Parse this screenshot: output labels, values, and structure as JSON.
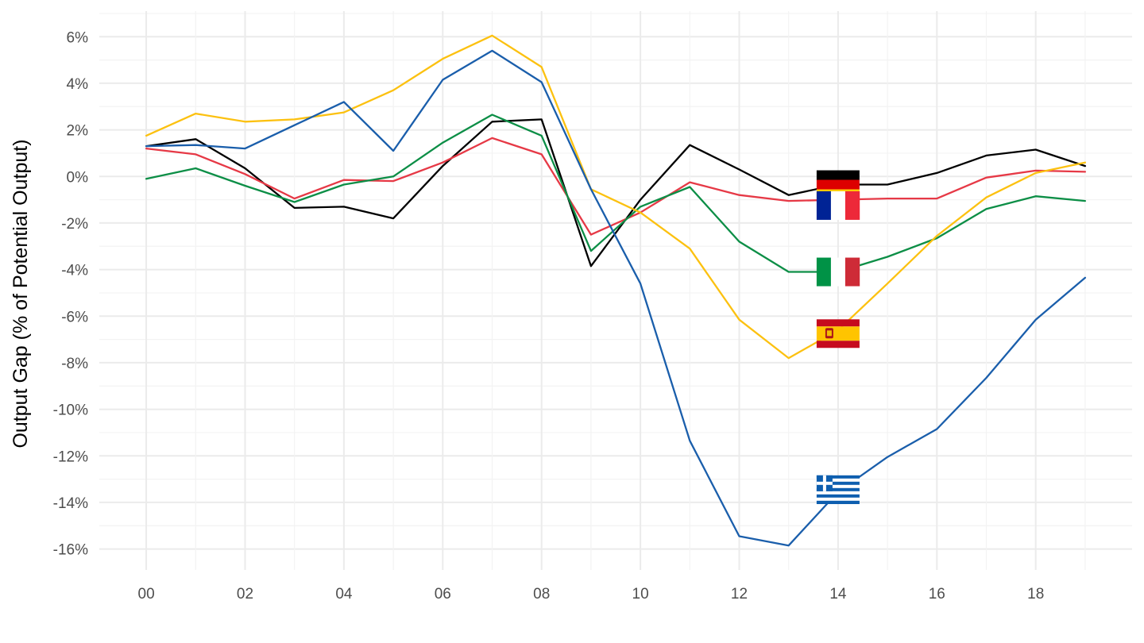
{
  "chart_data": {
    "type": "line",
    "title": "",
    "xlabel": "",
    "ylabel": "Output Gap (% of Potential Output)",
    "x": [
      0,
      1,
      2,
      3,
      4,
      5,
      6,
      7,
      8,
      9,
      10,
      11,
      12,
      13,
      14,
      15,
      16,
      17,
      18,
      19
    ],
    "x_tick_values": [
      0,
      2,
      4,
      6,
      8,
      10,
      12,
      14,
      16,
      18
    ],
    "x_tick_labels": [
      "00",
      "02",
      "04",
      "06",
      "08",
      "10",
      "12",
      "14",
      "16",
      "18"
    ],
    "xlim": [
      -0.95,
      19.95
    ],
    "y_tick_values": [
      6,
      4,
      2,
      0,
      -2,
      -4,
      -6,
      -8,
      -10,
      -12,
      -14,
      -16
    ],
    "y_tick_labels": [
      "6%",
      "4%",
      "2%",
      "0%",
      "-2%",
      "-4%",
      "-6%",
      "-8%",
      "-10%",
      "-12%",
      "-14%",
      "-16%"
    ],
    "ylim": [
      -16.9,
      7.1
    ],
    "grid": true,
    "legend": "flags placed on each line at x = 14",
    "series": [
      {
        "country": "germany",
        "color": "#000000",
        "values": [
          1.3,
          1.6,
          0.35,
          -1.35,
          -1.3,
          -1.8,
          0.45,
          2.35,
          2.45,
          -3.85,
          -1.0,
          1.35,
          0.3,
          -0.8,
          -0.35,
          -0.35,
          0.15,
          0.9,
          1.15,
          0.45
        ]
      },
      {
        "country": "france",
        "color": "#e63946",
        "values": [
          1.2,
          0.95,
          0.1,
          -0.95,
          -0.15,
          -0.2,
          0.6,
          1.65,
          0.95,
          -2.5,
          -1.55,
          -0.25,
          -0.8,
          -1.05,
          -1.0,
          -0.95,
          -0.95,
          -0.05,
          0.25,
          0.2
        ]
      },
      {
        "country": "italy",
        "color": "#0c8e46",
        "values": [
          -0.1,
          0.35,
          -0.4,
          -1.1,
          -0.35,
          0.0,
          1.45,
          2.65,
          1.75,
          -3.2,
          -1.3,
          -0.45,
          -2.8,
          -4.1,
          -4.1,
          -3.45,
          -2.65,
          -1.4,
          -0.85,
          -1.05
        ]
      },
      {
        "country": "spain",
        "color": "#fcc110",
        "values": [
          1.75,
          2.7,
          2.35,
          2.45,
          2.75,
          3.7,
          5.05,
          6.05,
          4.7,
          -0.55,
          -1.55,
          -3.1,
          -6.15,
          -7.8,
          -6.6,
          -4.6,
          -2.55,
          -0.9,
          0.15,
          0.6
        ]
      },
      {
        "country": "greece",
        "color": "#1a5eab",
        "values": [
          1.3,
          1.35,
          1.2,
          2.2,
          3.2,
          1.1,
          4.15,
          5.4,
          4.05,
          -0.55,
          -4.6,
          -11.35,
          -15.45,
          -15.85,
          -13.55,
          -12.05,
          -10.85,
          -8.65,
          -6.15,
          -4.35
        ]
      }
    ],
    "flags": [
      {
        "country": "germany",
        "x": 14,
        "y": -0.35,
        "icon": "flag-germany-icon",
        "colors": [
          "#000000",
          "#dd0000",
          "#ffce00"
        ]
      },
      {
        "country": "france",
        "x": 14,
        "y": -1.25,
        "icon": "flag-france-icon",
        "colors": [
          "#002395",
          "#ffffff",
          "#ed2939"
        ]
      },
      {
        "country": "italy",
        "x": 14,
        "y": -4.1,
        "icon": "flag-italy-icon",
        "colors": [
          "#009246",
          "#ffffff",
          "#ce2b37"
        ]
      },
      {
        "country": "spain",
        "x": 14,
        "y": -6.75,
        "icon": "flag-spain-icon",
        "colors": [
          "#c60b1e",
          "#ffc400",
          "#c60b1e"
        ]
      },
      {
        "country": "greece",
        "x": 14,
        "y": -13.45,
        "icon": "flag-greece-icon",
        "colors": [
          "#0d5eaf",
          "#ffffff"
        ]
      }
    ]
  }
}
